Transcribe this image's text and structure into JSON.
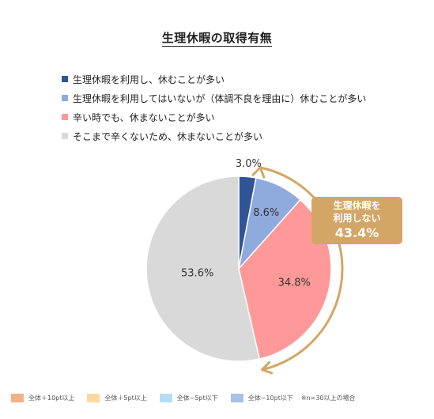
{
  "title": "生理休暇の取得有無",
  "colors": {
    "series": [
      "#2f5597",
      "#8faadc",
      "#ff9999",
      "#d9d9d9"
    ],
    "callout_bg": "#d4a665",
    "arrow": "#d4a665"
  },
  "chart_data": {
    "type": "pie",
    "title": "生理休暇の取得有無",
    "start_angle_deg": 0,
    "direction": "clockwise",
    "slices": [
      {
        "label": "生理休暇を利用し、休むことが多い",
        "value": 3.0,
        "display": "3.0%"
      },
      {
        "label": "生理休暇を利用してはいないが（体調不良を理由に）休むことが多い",
        "value": 8.6,
        "display": "8.6%"
      },
      {
        "label": "辛い時でも、休まないことが多い",
        "value": 34.8,
        "display": "34.8%"
      },
      {
        "label": "そこまで辛くないため、休まないことが多い",
        "value": 53.6,
        "display": "53.6%"
      }
    ],
    "legend_position": "top-left",
    "annotation": {
      "label_line1": "生理休暇を",
      "label_line2": "利用しない",
      "value": "43.4%"
    }
  },
  "footer": {
    "items": [
      {
        "label": "全体＋10pt以上",
        "color": "#f4b183"
      },
      {
        "label": "全体＋5pt以上",
        "color": "#ffd9a0"
      },
      {
        "label": "全体−5pt以下",
        "color": "#b4ddf7"
      },
      {
        "label": "全体−10pt以下",
        "color": "#a9c0e5"
      }
    ],
    "note": "※n=30以上の場合"
  }
}
